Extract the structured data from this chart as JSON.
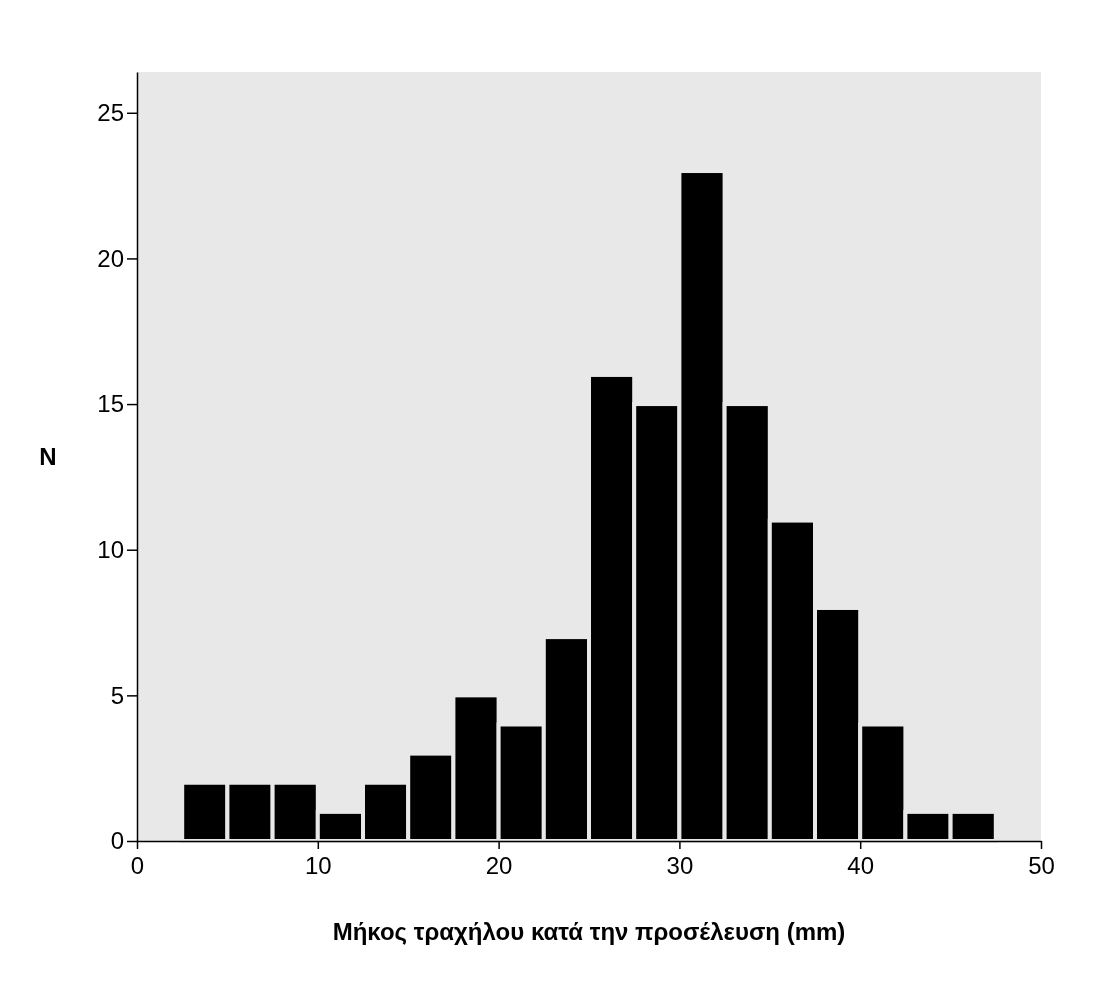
{
  "chart_data": {
    "type": "histogram",
    "xlabel": "Μήκος τραχήλου κατά την προσέλευση (mm)",
    "ylabel": "N",
    "bins": [
      2.5,
      5,
      7.5,
      10,
      12.5,
      15,
      17.5,
      20,
      22.5,
      25,
      27.5,
      30,
      32.5,
      35,
      37.5,
      40,
      42.5,
      45,
      47.5
    ],
    "values": [
      2,
      2,
      2,
      1,
      2,
      3,
      5,
      4,
      7,
      16,
      15,
      23,
      15,
      11,
      8,
      4,
      1,
      1
    ],
    "color": "#000000",
    "xlim": [
      0,
      50
    ],
    "xticks": [
      0,
      10,
      20,
      30,
      40,
      50
    ],
    "ylim": [
      0,
      26.4
    ],
    "yticks": [
      0,
      5,
      10,
      15,
      20,
      25
    ]
  }
}
